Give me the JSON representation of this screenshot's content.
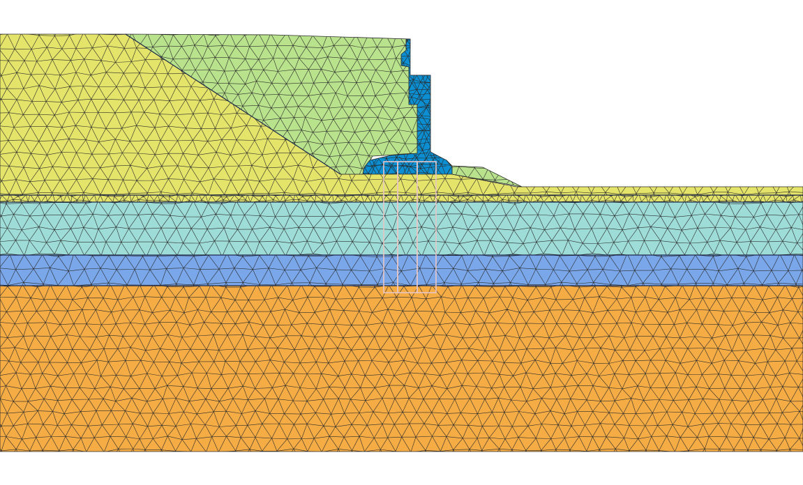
{
  "diagram": {
    "kind": "finite-element mesh cross-section",
    "layers": [
      {
        "id": "fill-upper",
        "color": "#e4e36a",
        "mesh": "triangular"
      },
      {
        "id": "embankment",
        "color": "#b8e28c",
        "mesh": "triangular"
      },
      {
        "id": "wall",
        "color": "#0b8fd2",
        "mesh": "triangular"
      },
      {
        "id": "thin-band",
        "color": "#e4e36a",
        "mesh": "triangular"
      },
      {
        "id": "clay",
        "color": "#9edcd8",
        "mesh": "triangular"
      },
      {
        "id": "sand",
        "color": "#7aa7ea",
        "mesh": "triangular"
      },
      {
        "id": "base",
        "color": "#f5ac45",
        "mesh": "triangular"
      }
    ],
    "colors": {
      "mesh_line": "#2a2a2a",
      "pile_outline": "#e8c6c6",
      "background": "#ffffff"
    },
    "piles_count": 3
  }
}
